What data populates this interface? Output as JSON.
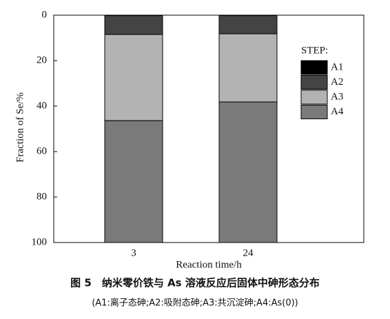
{
  "chart_data": {
    "type": "stacked_bar",
    "ylabel": "Fraction of Se/%",
    "xlabel": "Reaction time/h",
    "categories": [
      "3",
      "24"
    ],
    "series": [
      {
        "name": "A1",
        "color": "#000000",
        "values": [
          0.2,
          0.2
        ]
      },
      {
        "name": "A2",
        "color": "#444444",
        "values": [
          8.3,
          8.0
        ]
      },
      {
        "name": "A3",
        "color": "#b3b3b3",
        "values": [
          37.9,
          30.0
        ]
      },
      {
        "name": "A4",
        "color": "#7a7a7a",
        "values": [
          53.6,
          61.8
        ]
      }
    ],
    "ylim": [
      0,
      100
    ],
    "yticks": [
      0,
      20,
      40,
      60,
      80,
      100
    ],
    "y_inverted": true,
    "legend_title": "STEP:",
    "legend_position": "right"
  },
  "caption": {
    "title": "图 5　纳米零价铁与 As 溶液反应后固体中砷形态分布",
    "note": "(A1:离子态砷;A2:吸附态砷;A3:共沉淀砷;A4:As(0))"
  }
}
